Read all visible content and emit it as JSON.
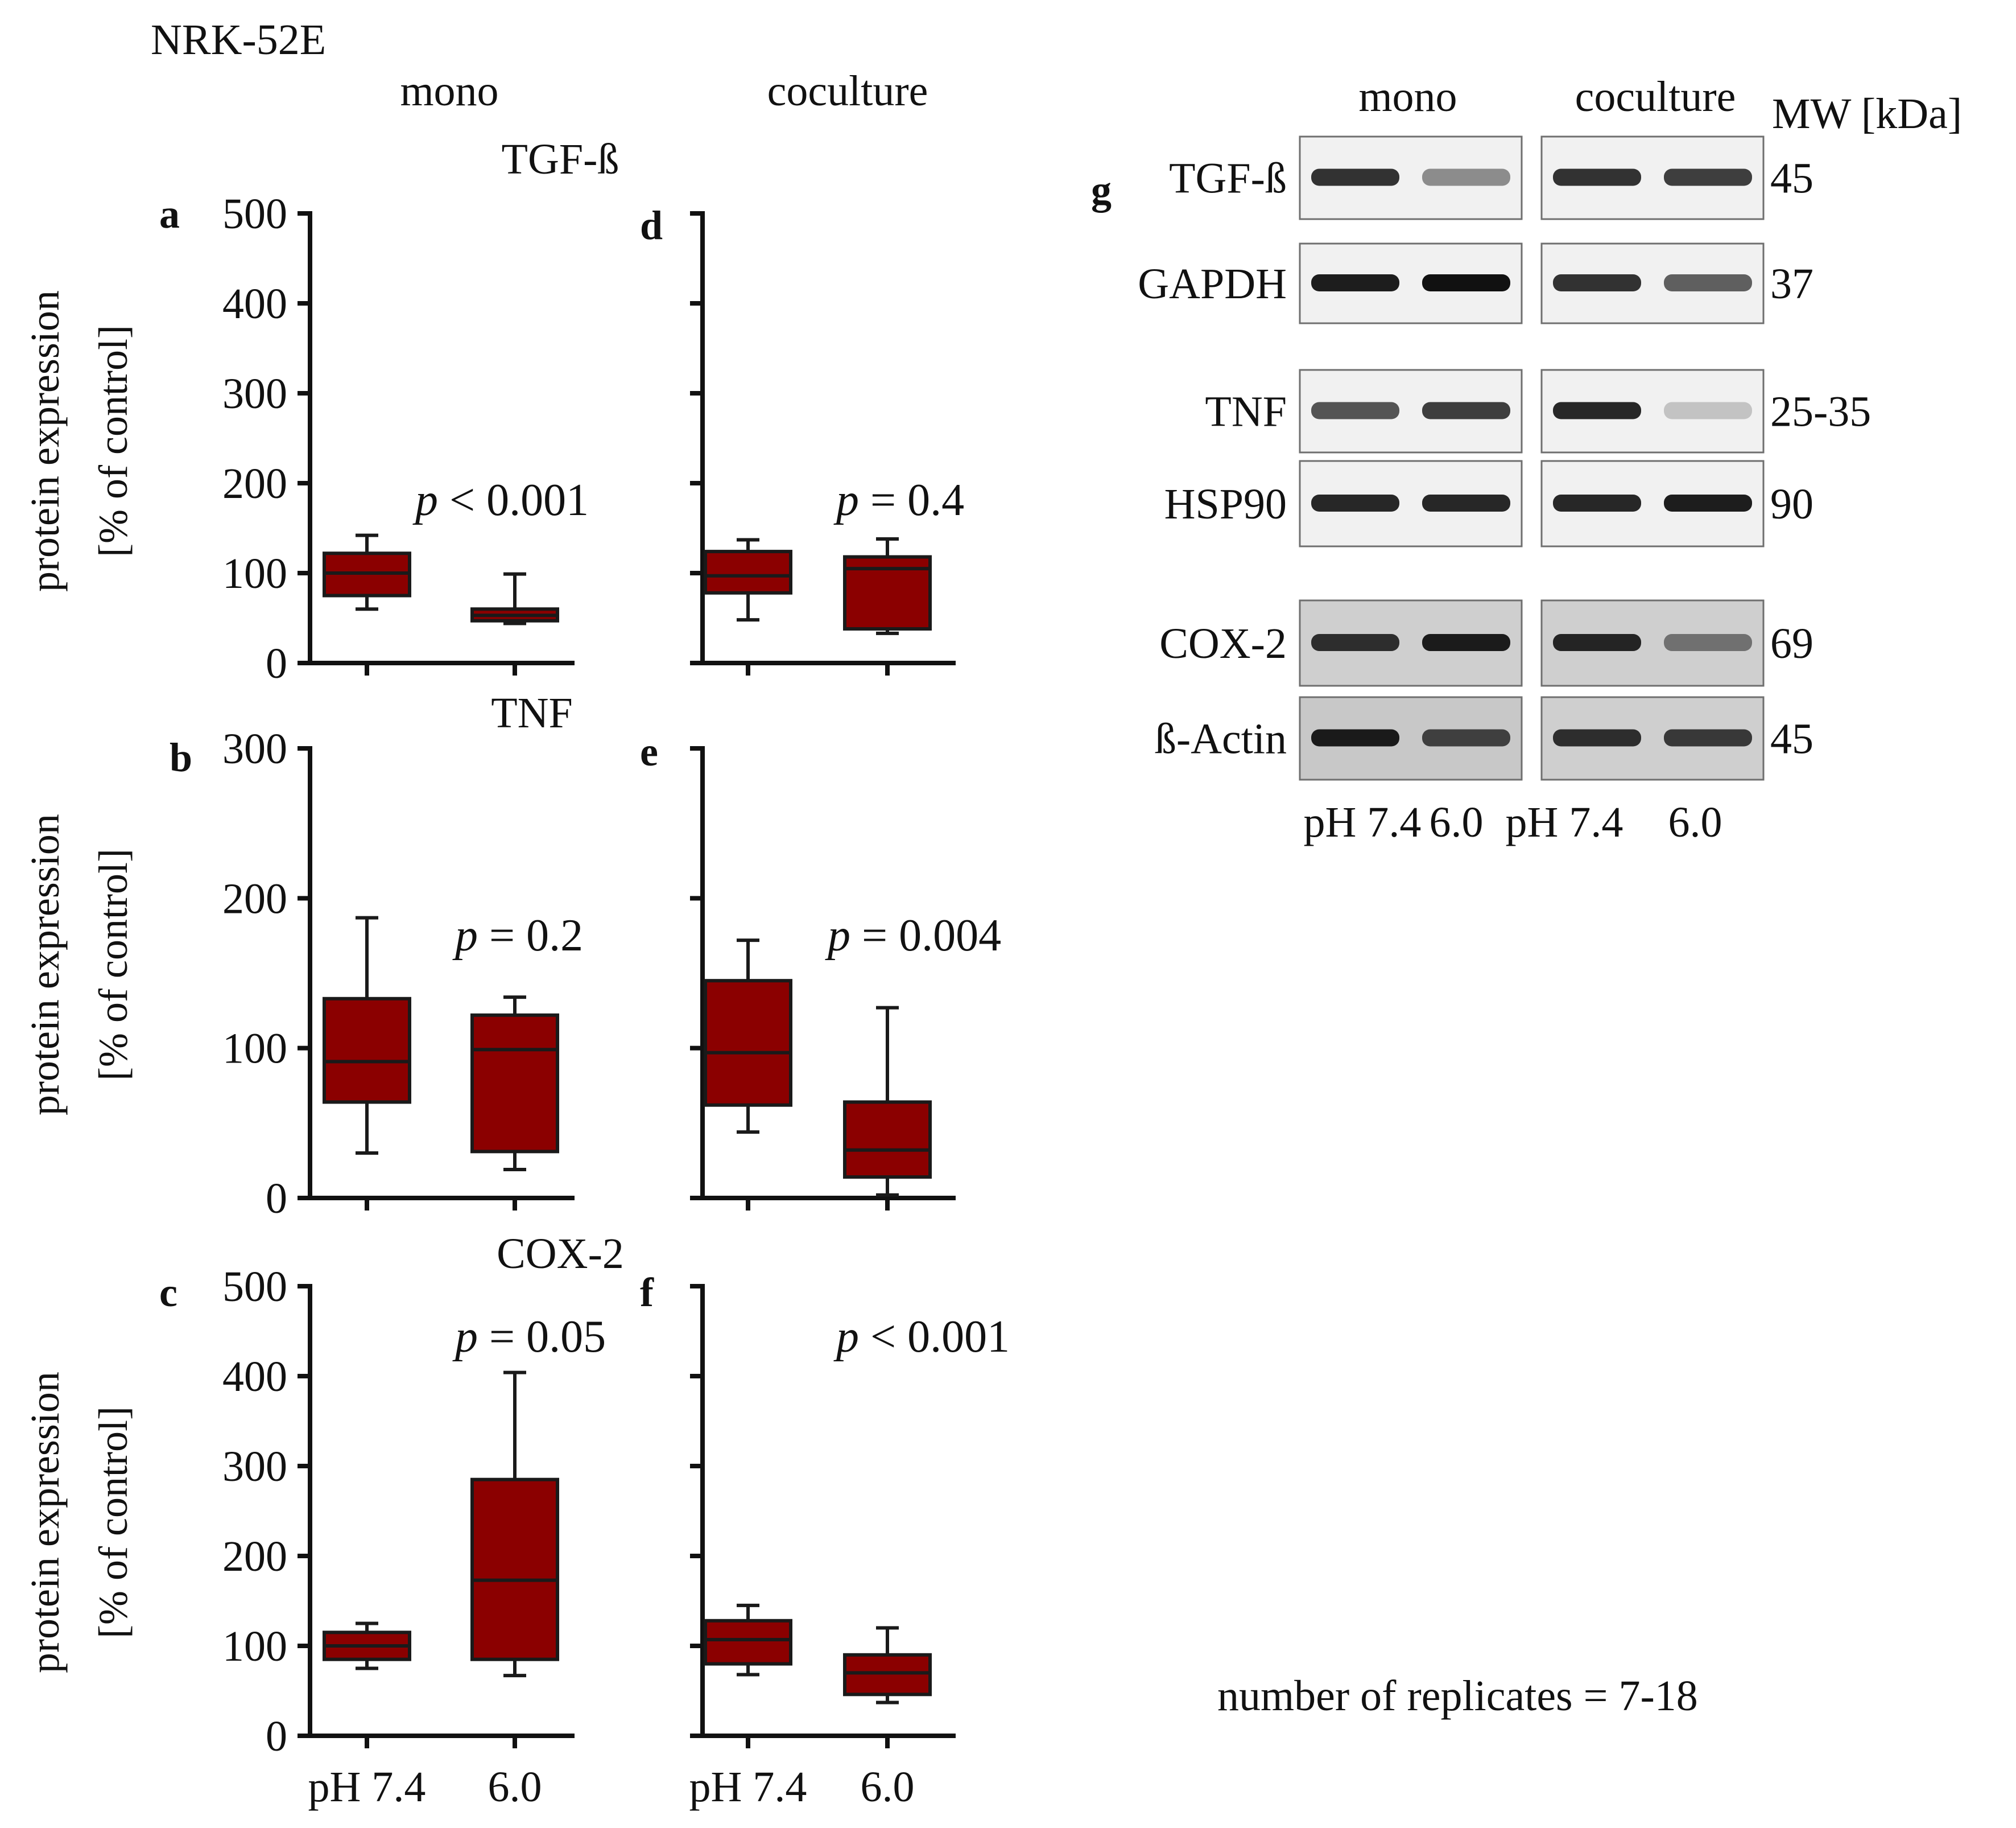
{
  "figure": {
    "cell_line": "NRK-52E",
    "header_mono": "mono",
    "header_coculture": "coculture",
    "replicates_note": "number of replicates = 7-18",
    "colors": {
      "box_fill": "#8b0000",
      "box_stroke": "#1a1a1a",
      "axis": "#111111",
      "text": "#111111"
    }
  },
  "chart_data": [
    {
      "panel": "a",
      "type": "box",
      "protein": "TGF-ß",
      "condition": "mono",
      "ylabel_line1": "protein expression",
      "ylabel_line2": "[% of control]",
      "ylim": [
        0,
        500
      ],
      "yticks": [
        0,
        100,
        200,
        300,
        400,
        500
      ],
      "show_tick_labels": true,
      "pvalue": {
        "p": "p",
        "op": "< 0.001"
      },
      "boxes": [
        {
          "group": "pH 7.4",
          "min": 60,
          "q1": 75,
          "median": 100,
          "q3": 122,
          "max": 142
        },
        {
          "group": "6.0",
          "min": 44,
          "q1": 47,
          "median": 53,
          "q3": 60,
          "max": 99
        }
      ]
    },
    {
      "panel": "d",
      "type": "box",
      "protein": "TGF-ß",
      "condition": "coculture",
      "ylim": [
        0,
        500
      ],
      "yticks": [
        0,
        100,
        200,
        300,
        400,
        500
      ],
      "show_tick_labels": false,
      "pvalue": {
        "p": "p",
        "op": "= 0.4"
      },
      "boxes": [
        {
          "group": "pH 7.4",
          "min": 48,
          "q1": 78,
          "median": 97,
          "q3": 124,
          "max": 137
        },
        {
          "group": "6.0",
          "min": 33,
          "q1": 38,
          "median": 105,
          "q3": 118,
          "max": 138
        }
      ]
    },
    {
      "panel": "b",
      "type": "box",
      "protein": "TNF",
      "condition": "mono",
      "ylabel_line1": "protein expression",
      "ylabel_line2": "[% of control]",
      "ylim": [
        0,
        300
      ],
      "yticks": [
        0,
        100,
        200,
        300
      ],
      "show_tick_labels": true,
      "pvalue": {
        "p": "p",
        "op": "= 0.2"
      },
      "boxes": [
        {
          "group": "pH 7.4",
          "min": 30,
          "q1": 64,
          "median": 91,
          "q3": 133,
          "max": 187
        },
        {
          "group": "6.0",
          "min": 19,
          "q1": 31,
          "median": 99,
          "q3": 122,
          "max": 134
        }
      ]
    },
    {
      "panel": "e",
      "type": "box",
      "protein": "TNF",
      "condition": "coculture",
      "ylim": [
        0,
        300
      ],
      "yticks": [
        0,
        100,
        200,
        300
      ],
      "show_tick_labels": false,
      "pvalue": {
        "p": "p",
        "op": "= 0.004"
      },
      "boxes": [
        {
          "group": "pH 7.4",
          "min": 44,
          "q1": 62,
          "median": 97,
          "q3": 145,
          "max": 172
        },
        {
          "group": "6.0",
          "min": 2,
          "q1": 14,
          "median": 32,
          "q3": 64,
          "max": 127
        }
      ]
    },
    {
      "panel": "c",
      "type": "box",
      "protein": "COX-2",
      "condition": "mono",
      "ylabel_line1": "protein expression",
      "ylabel_line2": "[% of control]",
      "xlabel_left": "pH 7.4",
      "xlabel_right": "6.0",
      "ylim": [
        0,
        500
      ],
      "yticks": [
        0,
        100,
        200,
        300,
        400,
        500
      ],
      "show_tick_labels": true,
      "pvalue": {
        "p": "p",
        "op": "= 0.05"
      },
      "boxes": [
        {
          "group": "pH 7.4",
          "min": 75,
          "q1": 85,
          "median": 100,
          "q3": 115,
          "max": 125
        },
        {
          "group": "6.0",
          "min": 67,
          "q1": 85,
          "median": 173,
          "q3": 285,
          "max": 404
        }
      ]
    },
    {
      "panel": "f",
      "type": "box",
      "protein": "COX-2",
      "condition": "coculture",
      "xlabel_left": "pH 7.4",
      "xlabel_right": "6.0",
      "ylim": [
        0,
        500
      ],
      "yticks": [
        0,
        100,
        200,
        300,
        400,
        500
      ],
      "show_tick_labels": false,
      "pvalue": {
        "p": "p",
        "op": "< 0.001"
      },
      "boxes": [
        {
          "group": "pH 7.4",
          "min": 68,
          "q1": 80,
          "median": 107,
          "q3": 128,
          "max": 145
        },
        {
          "group": "6.0",
          "min": 37,
          "q1": 46,
          "median": 70,
          "q3": 90,
          "max": 120
        }
      ]
    }
  ],
  "blot": {
    "panel_letter": "g",
    "header_mono": "mono",
    "header_coculture": "coculture",
    "mw_header": "MW [kDa]",
    "lanes_label": [
      "pH 7.4",
      "6.0",
      "pH 7.4",
      "6.0"
    ],
    "rows": [
      {
        "label": "TGF-ß",
        "mw": "45",
        "mono": [
          0.85,
          0.45
        ],
        "coculture": [
          0.85,
          0.8
        ]
      },
      {
        "label": "GAPDH",
        "mw": "37",
        "mono": [
          0.95,
          1.0
        ],
        "coculture": [
          0.85,
          0.65
        ]
      },
      {
        "label": "TNF",
        "mw": "25-35",
        "mono": [
          0.7,
          0.8
        ],
        "coculture": [
          0.9,
          0.2
        ]
      },
      {
        "label": "HSP90",
        "mw": "90",
        "mono": [
          0.9,
          0.9
        ],
        "coculture": [
          0.9,
          0.95
        ]
      },
      {
        "label": "COX-2",
        "mw": "69",
        "mono": [
          0.85,
          0.95
        ],
        "coculture": [
          0.9,
          0.5
        ]
      },
      {
        "label": "ß-Actin",
        "mw": "45",
        "mono": [
          0.95,
          0.75
        ],
        "coculture": [
          0.85,
          0.8
        ]
      }
    ]
  }
}
